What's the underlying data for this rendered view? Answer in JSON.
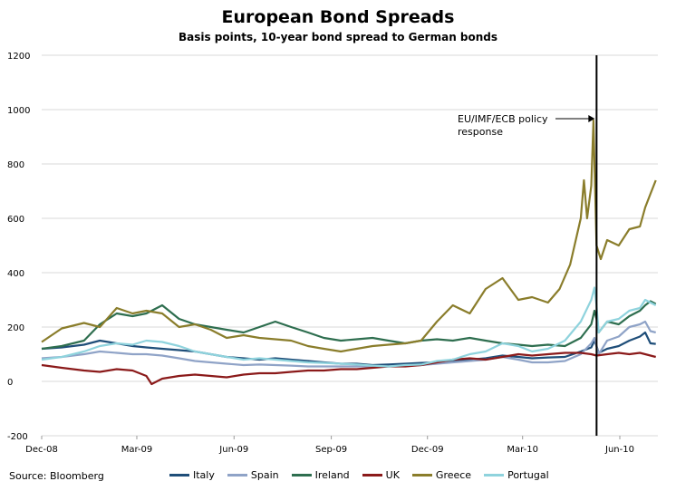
{
  "chart_data": {
    "type": "line",
    "title": "European Bond Spreads",
    "subtitle": "Basis points, 10-year bond spread to German bonds",
    "source": "Source: Bloomberg",
    "ylim": [
      -200,
      1200
    ],
    "yticks": [
      -200,
      0,
      200,
      400,
      600,
      800,
      1000,
      1200
    ],
    "xlim": [
      "2008-12-01",
      "2010-07-07"
    ],
    "xticks": [
      {
        "date": "2008-12-01",
        "label": "Dec-08"
      },
      {
        "date": "2009-03-01",
        "label": "Mar-09"
      },
      {
        "date": "2009-06-01",
        "label": "Jun-09"
      },
      {
        "date": "2009-09-01",
        "label": "Sep-09"
      },
      {
        "date": "2009-12-01",
        "label": "Dec-09"
      },
      {
        "date": "2010-03-01",
        "label": "Mar-10"
      },
      {
        "date": "2010-06-01",
        "label": "Jun-10"
      }
    ],
    "grid": true,
    "legend_position": "bottom",
    "vline_date": "2010-05-10",
    "annotation": {
      "lines": [
        "EU/IMF/ECB policy",
        "response"
      ],
      "date": "2010-05-10",
      "value": 960
    },
    "series": [
      {
        "name": "Italy",
        "color": "#1f4e79",
        "points": [
          [
            "2008-12-01",
            120
          ],
          [
            "2008-12-20",
            125
          ],
          [
            "2009-01-10",
            135
          ],
          [
            "2009-01-25",
            150
          ],
          [
            "2009-02-10",
            140
          ],
          [
            "2009-02-25",
            130
          ],
          [
            "2009-03-10",
            125
          ],
          [
            "2009-03-25",
            120
          ],
          [
            "2009-04-10",
            115
          ],
          [
            "2009-04-25",
            110
          ],
          [
            "2009-05-10",
            100
          ],
          [
            "2009-05-25",
            90
          ],
          [
            "2009-06-10",
            85
          ],
          [
            "2009-06-25",
            80
          ],
          [
            "2009-07-10",
            85
          ],
          [
            "2009-07-25",
            80
          ],
          [
            "2009-08-10",
            75
          ],
          [
            "2009-08-25",
            70
          ],
          [
            "2009-09-10",
            65
          ],
          [
            "2009-09-25",
            65
          ],
          [
            "2009-10-10",
            60
          ],
          [
            "2009-10-25",
            62
          ],
          [
            "2009-11-10",
            65
          ],
          [
            "2009-11-25",
            68
          ],
          [
            "2009-12-10",
            70
          ],
          [
            "2009-12-25",
            75
          ],
          [
            "2010-01-10",
            80
          ],
          [
            "2010-01-25",
            85
          ],
          [
            "2010-02-10",
            95
          ],
          [
            "2010-02-25",
            90
          ],
          [
            "2010-03-10",
            85
          ],
          [
            "2010-03-25",
            88
          ],
          [
            "2010-04-10",
            90
          ],
          [
            "2010-04-25",
            110
          ],
          [
            "2010-05-05",
            125
          ],
          [
            "2010-05-08",
            150
          ],
          [
            "2010-05-10",
            130
          ],
          [
            "2010-05-12",
            105
          ],
          [
            "2010-05-20",
            120
          ],
          [
            "2010-05-31",
            130
          ],
          [
            "2010-06-10",
            150
          ],
          [
            "2010-06-20",
            165
          ],
          [
            "2010-06-25",
            180
          ],
          [
            "2010-06-30",
            140
          ],
          [
            "2010-07-05",
            138
          ]
        ]
      },
      {
        "name": "Spain",
        "color": "#8fa3c7",
        "points": [
          [
            "2008-12-01",
            85
          ],
          [
            "2008-12-20",
            90
          ],
          [
            "2009-01-10",
            100
          ],
          [
            "2009-01-25",
            110
          ],
          [
            "2009-02-10",
            105
          ],
          [
            "2009-02-25",
            100
          ],
          [
            "2009-03-10",
            100
          ],
          [
            "2009-03-25",
            95
          ],
          [
            "2009-04-10",
            85
          ],
          [
            "2009-04-25",
            75
          ],
          [
            "2009-05-10",
            70
          ],
          [
            "2009-05-25",
            65
          ],
          [
            "2009-06-10",
            60
          ],
          [
            "2009-06-25",
            62
          ],
          [
            "2009-07-10",
            60
          ],
          [
            "2009-07-25",
            58
          ],
          [
            "2009-08-10",
            55
          ],
          [
            "2009-08-25",
            55
          ],
          [
            "2009-09-10",
            55
          ],
          [
            "2009-09-25",
            55
          ],
          [
            "2009-10-10",
            55
          ],
          [
            "2009-10-25",
            55
          ],
          [
            "2009-11-10",
            58
          ],
          [
            "2009-11-25",
            60
          ],
          [
            "2009-12-10",
            65
          ],
          [
            "2009-12-25",
            70
          ],
          [
            "2010-01-10",
            75
          ],
          [
            "2010-01-25",
            80
          ],
          [
            "2010-02-10",
            90
          ],
          [
            "2010-02-25",
            80
          ],
          [
            "2010-03-10",
            70
          ],
          [
            "2010-03-25",
            70
          ],
          [
            "2010-04-10",
            75
          ],
          [
            "2010-04-25",
            100
          ],
          [
            "2010-05-05",
            140
          ],
          [
            "2010-05-08",
            160
          ],
          [
            "2010-05-10",
            130
          ],
          [
            "2010-05-12",
            100
          ],
          [
            "2010-05-20",
            150
          ],
          [
            "2010-05-31",
            165
          ],
          [
            "2010-06-10",
            200
          ],
          [
            "2010-06-20",
            210
          ],
          [
            "2010-06-25",
            220
          ],
          [
            "2010-06-30",
            185
          ],
          [
            "2010-07-05",
            180
          ]
        ]
      },
      {
        "name": "Ireland",
        "color": "#2e6e4f",
        "points": [
          [
            "2008-12-01",
            120
          ],
          [
            "2008-12-20",
            130
          ],
          [
            "2009-01-10",
            150
          ],
          [
            "2009-01-25",
            210
          ],
          [
            "2009-02-10",
            250
          ],
          [
            "2009-02-25",
            240
          ],
          [
            "2009-03-10",
            250
          ],
          [
            "2009-03-25",
            280
          ],
          [
            "2009-04-10",
            230
          ],
          [
            "2009-04-25",
            210
          ],
          [
            "2009-05-10",
            200
          ],
          [
            "2009-05-25",
            190
          ],
          [
            "2009-06-10",
            180
          ],
          [
            "2009-06-25",
            200
          ],
          [
            "2009-07-10",
            220
          ],
          [
            "2009-07-25",
            200
          ],
          [
            "2009-08-10",
            180
          ],
          [
            "2009-08-25",
            160
          ],
          [
            "2009-09-10",
            150
          ],
          [
            "2009-09-25",
            155
          ],
          [
            "2009-10-10",
            160
          ],
          [
            "2009-10-25",
            150
          ],
          [
            "2009-11-10",
            140
          ],
          [
            "2009-11-25",
            150
          ],
          [
            "2009-12-10",
            155
          ],
          [
            "2009-12-25",
            150
          ],
          [
            "2010-01-10",
            160
          ],
          [
            "2010-01-25",
            150
          ],
          [
            "2010-02-10",
            140
          ],
          [
            "2010-02-25",
            135
          ],
          [
            "2010-03-10",
            130
          ],
          [
            "2010-03-25",
            135
          ],
          [
            "2010-04-10",
            130
          ],
          [
            "2010-04-25",
            160
          ],
          [
            "2010-05-05",
            210
          ],
          [
            "2010-05-08",
            260
          ],
          [
            "2010-05-10",
            230
          ],
          [
            "2010-05-12",
            180
          ],
          [
            "2010-05-20",
            220
          ],
          [
            "2010-05-31",
            210
          ],
          [
            "2010-06-10",
            240
          ],
          [
            "2010-06-20",
            260
          ],
          [
            "2010-06-25",
            280
          ],
          [
            "2010-06-30",
            295
          ],
          [
            "2010-07-05",
            285
          ]
        ]
      },
      {
        "name": "UK",
        "color": "#8b1a1a",
        "points": [
          [
            "2008-12-01",
            60
          ],
          [
            "2008-12-20",
            50
          ],
          [
            "2009-01-10",
            40
          ],
          [
            "2009-01-25",
            35
          ],
          [
            "2009-02-10",
            45
          ],
          [
            "2009-02-25",
            40
          ],
          [
            "2009-03-10",
            20
          ],
          [
            "2009-03-15",
            -10
          ],
          [
            "2009-03-25",
            10
          ],
          [
            "2009-04-10",
            20
          ],
          [
            "2009-04-25",
            25
          ],
          [
            "2009-05-10",
            20
          ],
          [
            "2009-05-25",
            15
          ],
          [
            "2009-06-10",
            25
          ],
          [
            "2009-06-25",
            30
          ],
          [
            "2009-07-10",
            30
          ],
          [
            "2009-07-25",
            35
          ],
          [
            "2009-08-10",
            40
          ],
          [
            "2009-08-25",
            40
          ],
          [
            "2009-09-10",
            45
          ],
          [
            "2009-09-25",
            45
          ],
          [
            "2009-10-10",
            50
          ],
          [
            "2009-10-25",
            55
          ],
          [
            "2009-11-10",
            55
          ],
          [
            "2009-11-25",
            60
          ],
          [
            "2009-12-10",
            70
          ],
          [
            "2009-12-25",
            80
          ],
          [
            "2010-01-10",
            85
          ],
          [
            "2010-01-25",
            80
          ],
          [
            "2010-02-10",
            90
          ],
          [
            "2010-02-25",
            100
          ],
          [
            "2010-03-10",
            95
          ],
          [
            "2010-03-25",
            100
          ],
          [
            "2010-04-10",
            105
          ],
          [
            "2010-04-25",
            105
          ],
          [
            "2010-05-05",
            100
          ],
          [
            "2010-05-10",
            95
          ],
          [
            "2010-05-20",
            100
          ],
          [
            "2010-05-31",
            105
          ],
          [
            "2010-06-10",
            100
          ],
          [
            "2010-06-20",
            105
          ],
          [
            "2010-06-30",
            95
          ],
          [
            "2010-07-05",
            90
          ]
        ]
      },
      {
        "name": "Greece",
        "color": "#8a7d2b",
        "points": [
          [
            "2008-12-01",
            145
          ],
          [
            "2008-12-20",
            195
          ],
          [
            "2009-01-10",
            215
          ],
          [
            "2009-01-25",
            200
          ],
          [
            "2009-02-10",
            270
          ],
          [
            "2009-02-25",
            250
          ],
          [
            "2009-03-10",
            260
          ],
          [
            "2009-03-25",
            250
          ],
          [
            "2009-04-10",
            200
          ],
          [
            "2009-04-25",
            210
          ],
          [
            "2009-05-10",
            190
          ],
          [
            "2009-05-25",
            160
          ],
          [
            "2009-06-10",
            170
          ],
          [
            "2009-06-25",
            160
          ],
          [
            "2009-07-10",
            155
          ],
          [
            "2009-07-25",
            150
          ],
          [
            "2009-08-10",
            130
          ],
          [
            "2009-08-25",
            120
          ],
          [
            "2009-09-10",
            110
          ],
          [
            "2009-09-25",
            120
          ],
          [
            "2009-10-10",
            130
          ],
          [
            "2009-10-25",
            135
          ],
          [
            "2009-11-10",
            140
          ],
          [
            "2009-11-25",
            150
          ],
          [
            "2009-12-10",
            220
          ],
          [
            "2009-12-25",
            280
          ],
          [
            "2010-01-10",
            250
          ],
          [
            "2010-01-25",
            340
          ],
          [
            "2010-02-10",
            380
          ],
          [
            "2010-02-25",
            300
          ],
          [
            "2010-03-10",
            310
          ],
          [
            "2010-03-25",
            290
          ],
          [
            "2010-04-05",
            340
          ],
          [
            "2010-04-15",
            430
          ],
          [
            "2010-04-25",
            600
          ],
          [
            "2010-04-28",
            740
          ],
          [
            "2010-05-01",
            600
          ],
          [
            "2010-05-05",
            720
          ],
          [
            "2010-05-07",
            960
          ],
          [
            "2010-05-10",
            500
          ],
          [
            "2010-05-14",
            450
          ],
          [
            "2010-05-20",
            520
          ],
          [
            "2010-05-31",
            500
          ],
          [
            "2010-06-10",
            560
          ],
          [
            "2010-06-20",
            570
          ],
          [
            "2010-06-25",
            640
          ],
          [
            "2010-06-30",
            690
          ],
          [
            "2010-07-05",
            740
          ]
        ]
      },
      {
        "name": "Portugal",
        "color": "#8fd3dd",
        "points": [
          [
            "2008-12-01",
            80
          ],
          [
            "2008-12-20",
            90
          ],
          [
            "2009-01-10",
            110
          ],
          [
            "2009-01-25",
            130
          ],
          [
            "2009-02-10",
            140
          ],
          [
            "2009-02-25",
            135
          ],
          [
            "2009-03-10",
            150
          ],
          [
            "2009-03-25",
            145
          ],
          [
            "2009-04-10",
            130
          ],
          [
            "2009-04-25",
            110
          ],
          [
            "2009-05-10",
            100
          ],
          [
            "2009-05-25",
            90
          ],
          [
            "2009-06-10",
            80
          ],
          [
            "2009-06-25",
            85
          ],
          [
            "2009-07-10",
            80
          ],
          [
            "2009-07-25",
            75
          ],
          [
            "2009-08-10",
            70
          ],
          [
            "2009-08-25",
            68
          ],
          [
            "2009-09-10",
            65
          ],
          [
            "2009-09-25",
            62
          ],
          [
            "2009-10-10",
            58
          ],
          [
            "2009-10-25",
            55
          ],
          [
            "2009-11-10",
            60
          ],
          [
            "2009-11-25",
            62
          ],
          [
            "2009-12-10",
            75
          ],
          [
            "2009-12-25",
            80
          ],
          [
            "2010-01-10",
            100
          ],
          [
            "2010-01-25",
            110
          ],
          [
            "2010-02-10",
            140
          ],
          [
            "2010-02-25",
            130
          ],
          [
            "2010-03-10",
            110
          ],
          [
            "2010-03-25",
            120
          ],
          [
            "2010-04-10",
            150
          ],
          [
            "2010-04-25",
            220
          ],
          [
            "2010-05-05",
            300
          ],
          [
            "2010-05-08",
            345
          ],
          [
            "2010-05-10",
            280
          ],
          [
            "2010-05-12",
            180
          ],
          [
            "2010-05-20",
            220
          ],
          [
            "2010-05-31",
            230
          ],
          [
            "2010-06-10",
            260
          ],
          [
            "2010-06-20",
            270
          ],
          [
            "2010-06-25",
            300
          ],
          [
            "2010-06-30",
            290
          ],
          [
            "2010-07-05",
            280
          ]
        ]
      }
    ]
  }
}
